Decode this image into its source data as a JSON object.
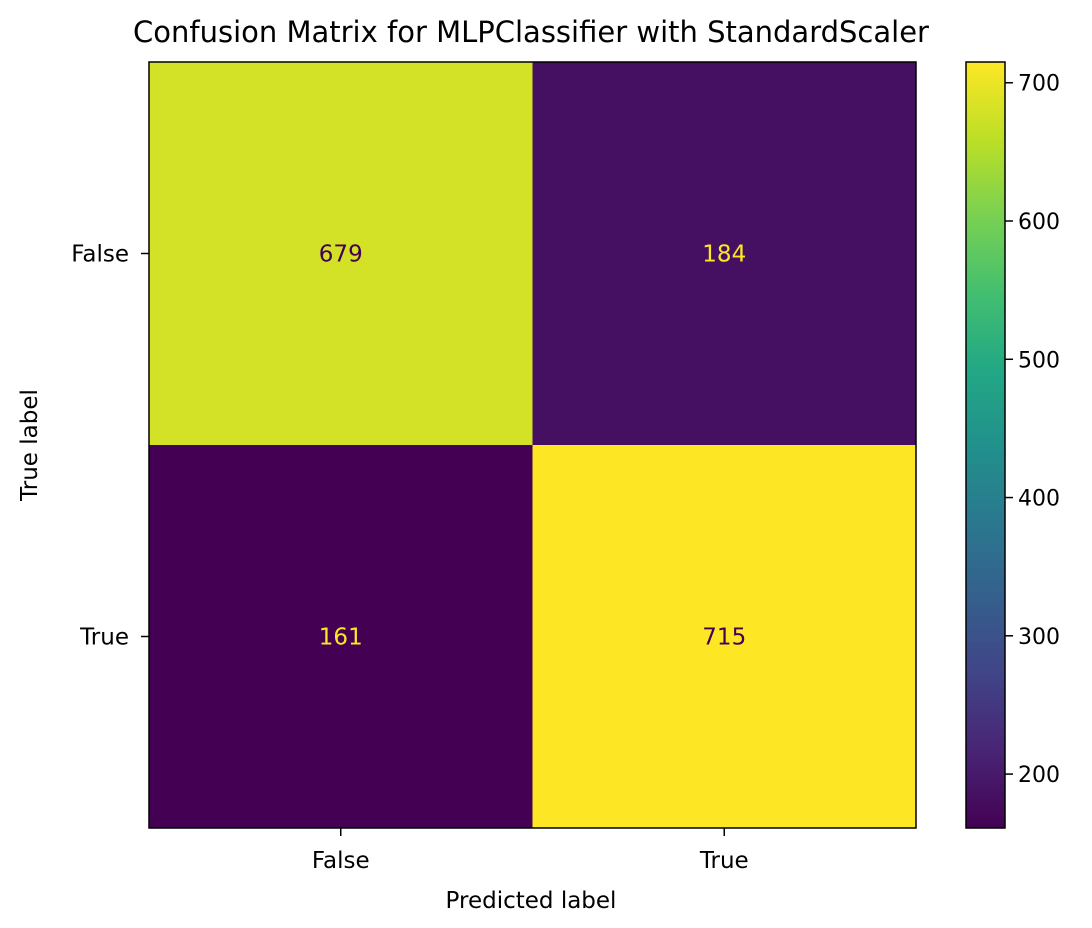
{
  "chart_data": {
    "type": "heatmap",
    "title": "Confusion Matrix for MLPClassifier with StandardScaler",
    "xlabel": "Predicted label",
    "ylabel": "True label",
    "x_categories": [
      "False",
      "True"
    ],
    "y_categories": [
      "False",
      "True"
    ],
    "matrix": [
      [
        679,
        184
      ],
      [
        161,
        715
      ]
    ],
    "colormap": "viridis",
    "colorbar": {
      "range": [
        161,
        715
      ],
      "ticks": [
        200,
        300,
        400,
        500,
        600,
        700
      ],
      "tick_labels": [
        "200",
        "300",
        "400",
        "500",
        "600",
        "700"
      ]
    },
    "grid": false
  },
  "colors": {
    "cell_text_dark_bg": "#fde725",
    "cell_text_light_bg": "#440154"
  }
}
